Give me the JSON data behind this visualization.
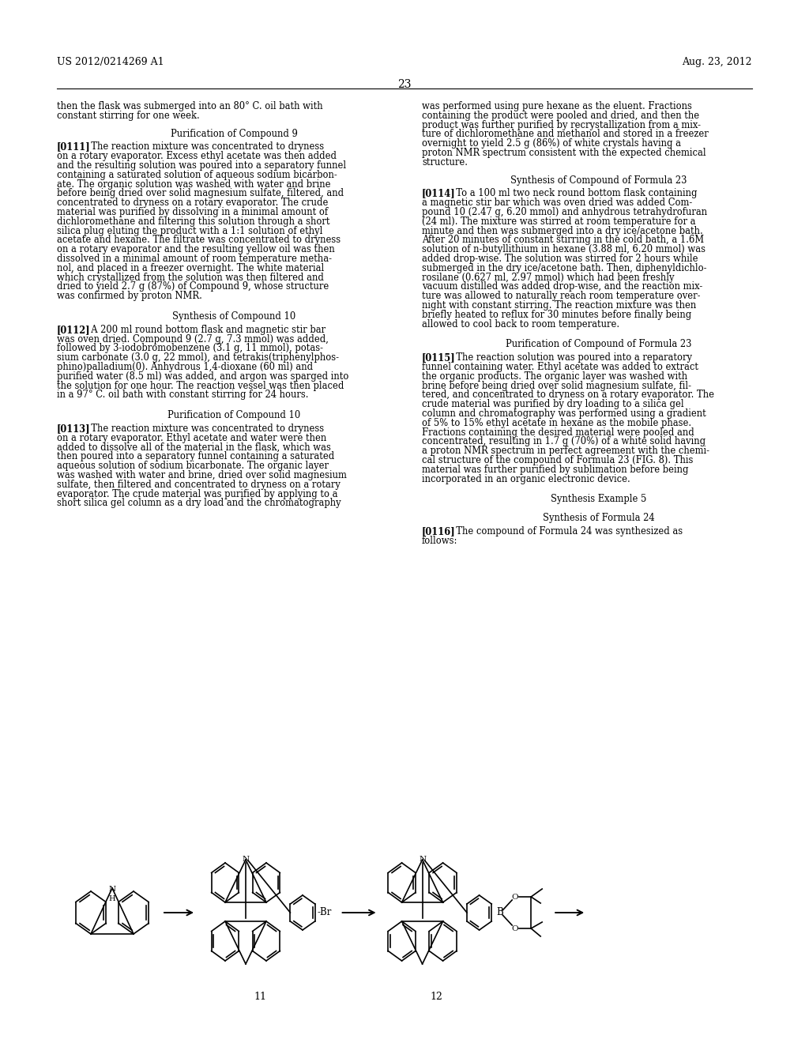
{
  "header_left": "US 2012/0214269 A1",
  "header_right": "Aug. 23, 2012",
  "page_number": "23",
  "background_color": "#ffffff",
  "text_color": "#000000",
  "left_column": [
    {
      "type": "body",
      "text": "then the flask was submerged into an 80° C. oil bath with\nconstant stirring for one week."
    },
    {
      "type": "section_title",
      "text": "Purification of Compound 9"
    },
    {
      "type": "paragraph",
      "tag": "[0111]",
      "text": "The reaction mixture was concentrated to dryness\non a rotary evaporator. Excess ethyl acetate was then added\nand the resulting solution was poured into a separatory funnel\ncontaining a saturated solution of aqueous sodium bicarbon-\nate. The organic solution was washed with water and brine\nbefore being dried over solid magnesium sulfate, filtered, and\nconcentrated to dryness on a rotary evaporator. The crude\nmaterial was purified by dissolving in a minimal amount of\ndichloromethane and filtering this solution through a short\nsilica plug eluting the product with a 1:1 solution of ethyl\nacetate and hexane. The filtrate was concentrated to dryness\non a rotary evaporator and the resulting yellow oil was then\ndissolved in a minimal amount of room temperature metha-\nnol, and placed in a freezer overnight. The white material\nwhich crystallized from the solution was then filtered and\ndried to yield 2.7 g (87%) of Compound 9, whose structure\nwas confirmed by proton NMR."
    },
    {
      "type": "section_title",
      "text": "Synthesis of Compound 10"
    },
    {
      "type": "paragraph",
      "tag": "[0112]",
      "text": "A 200 ml round bottom flask and magnetic stir bar\nwas oven dried. Compound 9 (2.7 g, 7.3 mmol) was added,\nfollowed by 3-iodobromobenzene (3.1 g, 11 mmol), potas-\nsium carbonate (3.0 g, 22 mmol), and tetrakis(triphenylphos-\nphino)palladium(0). Anhydrous 1,4-dioxane (60 ml) and\npurified water (8.5 ml) was added, and argon was sparged into\nthe solution for one hour. The reaction vessel was then placed\nin a 97° C. oil bath with constant stirring for 24 hours."
    },
    {
      "type": "section_title",
      "text": "Purification of Compound 10"
    },
    {
      "type": "paragraph",
      "tag": "[0113]",
      "text": "The reaction mixture was concentrated to dryness\non a rotary evaporator. Ethyl acetate and water were then\nadded to dissolve all of the material in the flask, which was\nthen poured into a separatory funnel containing a saturated\naqueous solution of sodium bicarbonate. The organic layer\nwas washed with water and brine, dried over solid magnesium\nsulfate, then filtered and concentrated to dryness on a rotary\nevaporator. The crude material was purified by applying to a\nshort silica gel column as a dry load and the chromatography"
    }
  ],
  "right_column": [
    {
      "type": "body",
      "text": "was performed using pure hexane as the eluent. Fractions\ncontaining the product were pooled and dried, and then the\nproduct was further purified by recrystallization from a mix-\nture of dichloromethane and methanol and stored in a freezer\novernight to yield 2.5 g (86%) of white crystals having a\nproton NMR spectrum consistent with the expected chemical\nstructure."
    },
    {
      "type": "section_title",
      "text": "Synthesis of Compound of Formula 23"
    },
    {
      "type": "paragraph",
      "tag": "[0114]",
      "text": "To a 100 ml two neck round bottom flask containing\na magnetic stir bar which was oven dried was added Com-\npound 10 (2.47 g, 6.20 mmol) and anhydrous tetrahydrofuran\n(24 ml). The mixture was stirred at room temperature for a\nminute and then was submerged into a dry ice/acetone bath.\nAfter 20 minutes of constant stirring in the cold bath, a 1.6M\nsolution of n-butyllithium in hexane (3.88 ml, 6.20 mmol) was\nadded drop-wise. The solution was stirred for 2 hours while\nsubmerged in the dry ice/acetone bath. Then, diphenyldichlo-\nrosilane (0.627 ml, 2.97 mmol) which had been freshly\nvacuum distilled was added drop-wise, and the reaction mix-\nture was allowed to naturally reach room temperature over-\nnight with constant stirring. The reaction mixture was then\nbriefly heated to reflux for 30 minutes before finally being\nallowed to cool back to room temperature."
    },
    {
      "type": "section_title",
      "text": "Purification of Compound of Formula 23"
    },
    {
      "type": "paragraph",
      "tag": "[0115]",
      "text": "The reaction solution was poured into a reparatory\nfunnel containing water. Ethyl acetate was added to extract\nthe organic products. The organic layer was washed with\nbrine before being dried over solid magnesium sulfate, fil-\ntered, and concentrated to dryness on a rotary evaporator. The\ncrude material was purified by dry loading to a silica gel\ncolumn and chromatography was performed using a gradient\nof 5% to 15% ethyl acetate in hexane as the mobile phase.\nFractions containing the desired material were pooled and\nconcentrated, resulting in 1.7 g (70%) of a white solid having\na proton NMR spectrum in perfect agreement with the chemi-\ncal structure of the compound of Formula 23 (FIG. 8). This\nmaterial was further purified by sublimation before being\nincorporated in an organic electronic device."
    },
    {
      "type": "section_title",
      "text": "Synthesis Example 5"
    },
    {
      "type": "section_title",
      "text": "Synthesis of Formula 24"
    },
    {
      "type": "paragraph",
      "tag": "[0116]",
      "text": "The compound of Formula 24 was synthesized as\nfollows:"
    }
  ]
}
